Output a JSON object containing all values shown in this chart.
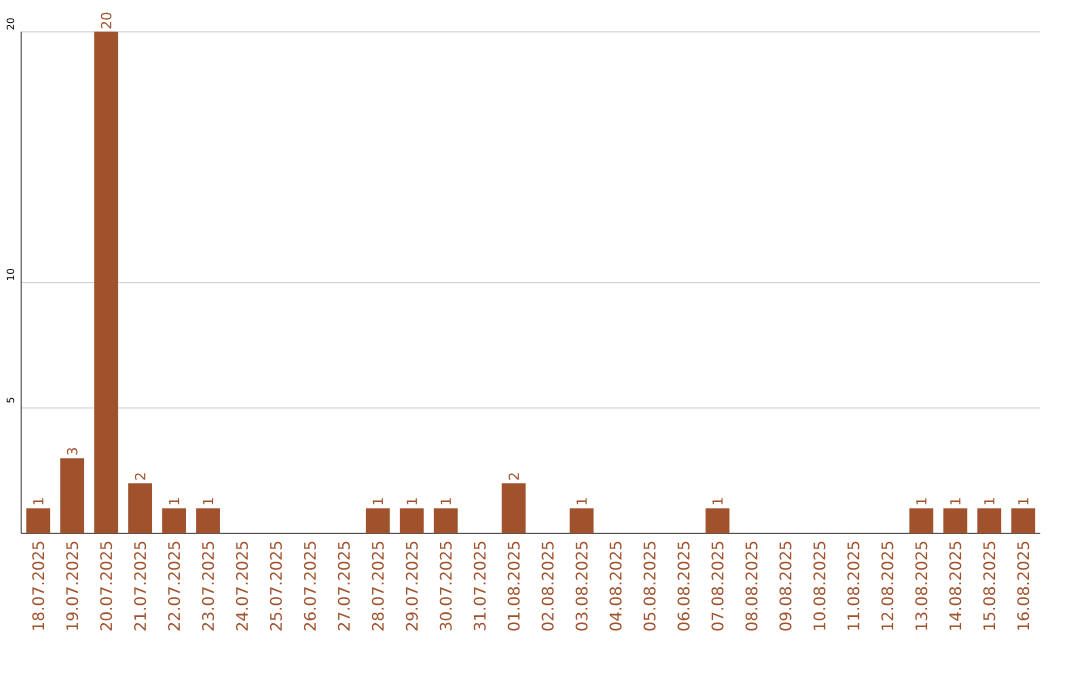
{
  "chart_data": {
    "type": "bar",
    "categories": [
      "18.07.2025",
      "19.07.2025",
      "20.07.2025",
      "21.07.2025",
      "22.07.2025",
      "23.07.2025",
      "24.07.2025",
      "25.07.2025",
      "26.07.2025",
      "27.07.2025",
      "28.07.2025",
      "29.07.2025",
      "30.07.2025",
      "31.07.2025",
      "01.08.2025",
      "02.08.2025",
      "03.08.2025",
      "04.08.2025",
      "05.08.2025",
      "06.08.2025",
      "07.08.2025",
      "08.08.2025",
      "09.08.2025",
      "10.08.2025",
      "11.08.2025",
      "12.08.2025",
      "13.08.2025",
      "14.08.2025",
      "15.08.2025",
      "16.08.2025"
    ],
    "values": [
      1,
      3,
      20,
      2,
      1,
      1,
      0,
      0,
      0,
      0,
      1,
      1,
      1,
      0,
      2,
      0,
      1,
      0,
      0,
      0,
      1,
      0,
      0,
      0,
      0,
      0,
      1,
      1,
      1,
      1
    ],
    "value_labels": [
      "1",
      "3",
      "20",
      "2",
      "1",
      "1",
      null,
      null,
      null,
      null,
      "1",
      "1",
      "1",
      null,
      "2",
      null,
      "1",
      null,
      null,
      null,
      "1",
      null,
      null,
      null,
      null,
      null,
      "1",
      "1",
      "1",
      "1"
    ],
    "color": "#a0522d",
    "ylim": [
      0,
      20
    ],
    "yticks": [
      5,
      10,
      20
    ],
    "grid": "y"
  }
}
